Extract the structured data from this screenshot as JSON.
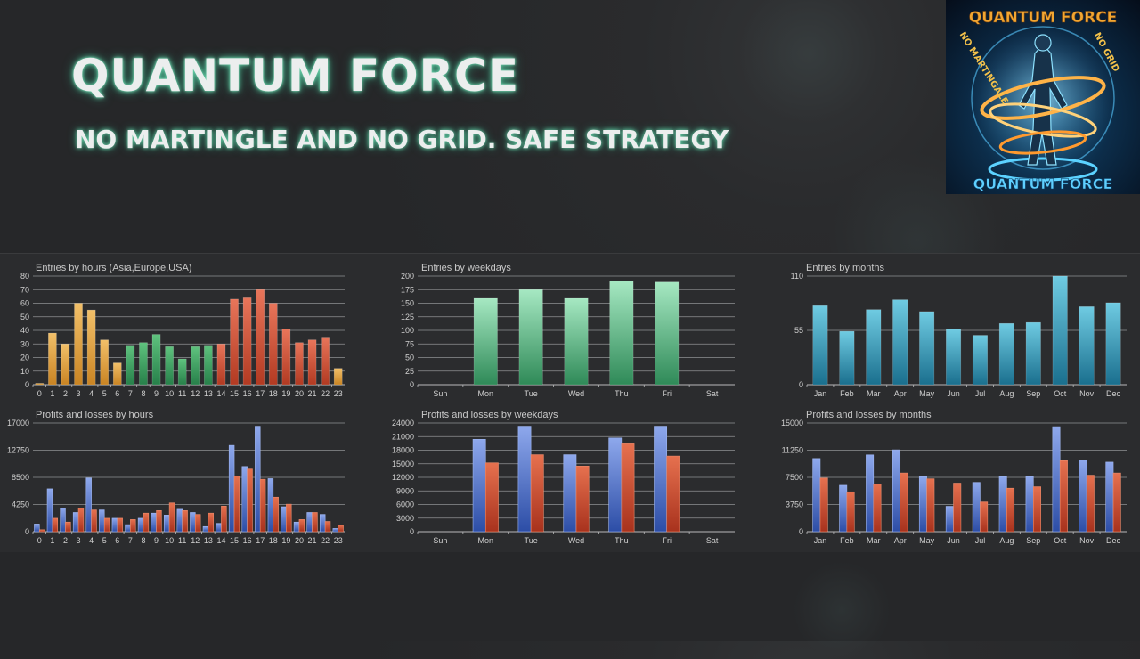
{
  "header": {
    "title": "QUANTUM FORCE",
    "subtitle": "NO MARTINGLE AND NO GRID. SAFE STRATEGY"
  },
  "logo": {
    "title": "QUANTUM FORCE",
    "left_text": "NO MARTINGALE",
    "right_text": "NO GRID"
  },
  "colors": {
    "orange": "#e0a03c",
    "green": "#3aa060",
    "red_orange": "#d2543a",
    "weekday_green": "#6ac493",
    "month_teal": "#2f9dba",
    "blue": "#4a6fc4",
    "red": "#d04a30"
  },
  "chart_data": [
    {
      "type": "bar",
      "title": "Entries by hours (Asia,Europe,USA)",
      "categories": [
        "0",
        "1",
        "2",
        "3",
        "4",
        "5",
        "6",
        "7",
        "8",
        "9",
        "10",
        "11",
        "12",
        "13",
        "14",
        "15",
        "16",
        "17",
        "18",
        "19",
        "20",
        "21",
        "22",
        "23"
      ],
      "values": [
        1,
        38,
        30,
        60,
        55,
        33,
        16,
        29,
        31,
        37,
        28,
        19,
        28,
        29,
        30,
        63,
        64,
        70,
        60,
        41,
        31,
        33,
        35,
        12
      ],
      "yticks": [
        "0",
        "10",
        "20",
        "30",
        "40",
        "50",
        "60",
        "70",
        "80"
      ],
      "ylim": [
        0,
        80
      ],
      "sessions": [
        "Asia",
        "Asia",
        "Asia",
        "Asia",
        "Asia",
        "Asia",
        "Asia",
        "Europe",
        "Europe",
        "Europe",
        "Europe",
        "Europe",
        "Europe",
        "Europe",
        "USA",
        "USA",
        "USA",
        "USA",
        "USA",
        "USA",
        "USA",
        "USA",
        "USA",
        "Asia"
      ],
      "grid": true
    },
    {
      "type": "bar",
      "title": "Entries by weekdays",
      "categories": [
        "Sun",
        "Mon",
        "Tue",
        "Wed",
        "Thu",
        "Fri",
        "Sat"
      ],
      "values": [
        0,
        159,
        175,
        159,
        191,
        189,
        0
      ],
      "yticks": [
        "0",
        "25",
        "50",
        "75",
        "100",
        "125",
        "150",
        "175",
        "200"
      ],
      "ylim": [
        0,
        200
      ],
      "grid": true
    },
    {
      "type": "bar",
      "title": "Entries by months",
      "categories": [
        "Jan",
        "Feb",
        "Mar",
        "Apr",
        "May",
        "Jun",
        "Jul",
        "Aug",
        "Sep",
        "Oct",
        "Nov",
        "Dec"
      ],
      "values": [
        80,
        54,
        76,
        86,
        74,
        56,
        50,
        62,
        63,
        110,
        79,
        83
      ],
      "yticks": [
        "0",
        "55",
        "110"
      ],
      "ylim": [
        0,
        110
      ],
      "grid": true
    },
    {
      "type": "bar",
      "title": "Profits and losses by hours",
      "categories": [
        "0",
        "1",
        "2",
        "3",
        "4",
        "5",
        "6",
        "7",
        "8",
        "9",
        "10",
        "11",
        "12",
        "13",
        "14",
        "15",
        "16",
        "17",
        "18",
        "19",
        "20",
        "21",
        "22",
        "23"
      ],
      "series": [
        {
          "values": [
            1200,
            6700,
            3700,
            3000,
            8400,
            3400,
            2100,
            1100,
            2100,
            2900,
            2600,
            3500,
            3000,
            800,
            1300,
            13500,
            10200,
            16500,
            8300,
            3900,
            1500,
            3000,
            2700,
            500
          ]
        },
        {
          "values": [
            300,
            2100,
            1500,
            3700,
            3400,
            2100,
            2100,
            1900,
            2900,
            3300,
            4500,
            3300,
            2700,
            2900,
            4000,
            8700,
            9800,
            8200,
            5400,
            4300,
            1900,
            3000,
            1600,
            1000
          ]
        }
      ],
      "yticks": [
        "0",
        "4250",
        "8500",
        "12750",
        "17000"
      ],
      "ylim": [
        0,
        17000
      ],
      "grid": true
    },
    {
      "type": "bar",
      "title": "Profits and losses by weekdays",
      "categories": [
        "Sun",
        "Mon",
        "Tue",
        "Wed",
        "Thu",
        "Fri",
        "Sat"
      ],
      "series": [
        {
          "values": [
            0,
            20400,
            23300,
            17000,
            20700,
            23300,
            0
          ]
        },
        {
          "values": [
            0,
            15200,
            17000,
            14500,
            19400,
            16700,
            0
          ]
        }
      ],
      "yticks": [
        "0",
        "3000",
        "6000",
        "9000",
        "12000",
        "15000",
        "18000",
        "21000",
        "24000"
      ],
      "ylim": [
        0,
        24000
      ],
      "grid": true
    },
    {
      "type": "bar",
      "title": "Profits and losses by months",
      "categories": [
        "Jan",
        "Feb",
        "Mar",
        "Apr",
        "May",
        "Jun",
        "Jul",
        "Aug",
        "Sep",
        "Oct",
        "Nov",
        "Dec"
      ],
      "series": [
        {
          "values": [
            10100,
            6400,
            10600,
            11300,
            7600,
            3500,
            6800,
            7600,
            7600,
            14500,
            9900,
            9600
          ]
        },
        {
          "values": [
            7400,
            5500,
            6600,
            8100,
            7300,
            6700,
            4100,
            6000,
            6200,
            9800,
            7800,
            8100
          ]
        }
      ],
      "yticks": [
        "0",
        "3750",
        "7500",
        "11250",
        "15000"
      ],
      "ylim": [
        0,
        15000
      ],
      "grid": true
    }
  ]
}
